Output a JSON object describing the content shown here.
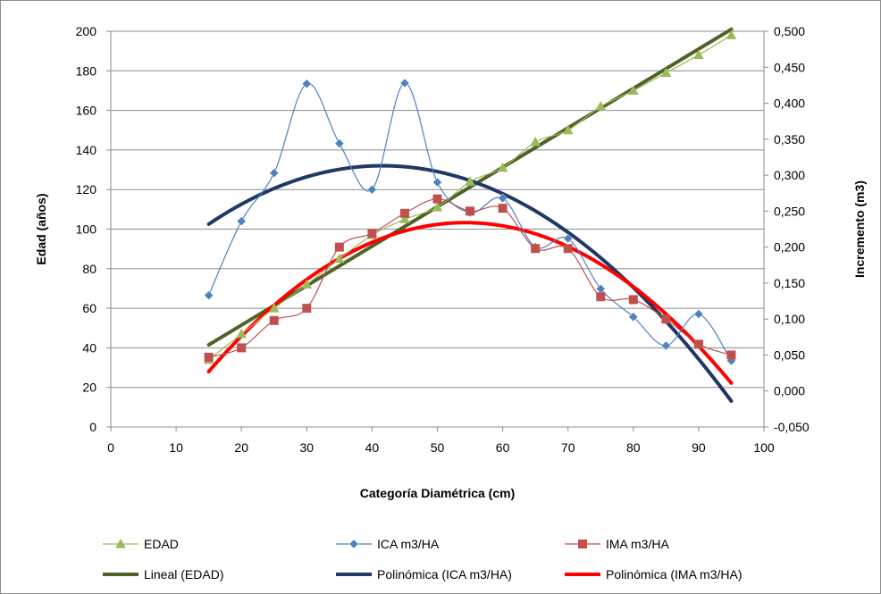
{
  "chart_data": {
    "type": "line",
    "xlabel": "Categoría Diamétrica (cm)",
    "ylabel": "Edad (años)",
    "y2label": "Incremento (m3)",
    "xlim": [
      0,
      100
    ],
    "ylim": [
      0,
      200
    ],
    "y2lim": [
      -0.05,
      0.5
    ],
    "x_ticks": [
      0,
      10,
      20,
      30,
      40,
      50,
      60,
      70,
      80,
      90,
      100
    ],
    "y_ticks": [
      0,
      20,
      40,
      60,
      80,
      100,
      120,
      140,
      160,
      180,
      200
    ],
    "y2_ticks": [
      "-0,050",
      "0,000",
      "0,050",
      "0,100",
      "0,150",
      "0,200",
      "0,250",
      "0,300",
      "0,350",
      "0,400",
      "0,450",
      "0,500"
    ],
    "y2_tick_values": [
      -0.05,
      0,
      0.05,
      0.1,
      0.15,
      0.2,
      0.25,
      0.3,
      0.35,
      0.4,
      0.45,
      0.5
    ],
    "grid": "horizontal",
    "legend_position": "bottom",
    "x": [
      15,
      20,
      25,
      30,
      35,
      40,
      45,
      50,
      55,
      60,
      65,
      70,
      75,
      80,
      85,
      90,
      95
    ],
    "series": [
      {
        "name": "EDAD",
        "axis": "left",
        "marker": "triangle",
        "color": "#9bbb59",
        "values": [
          34,
          47,
          60,
          72,
          85,
          97,
          105,
          111,
          124,
          131,
          144,
          150,
          162,
          170,
          179,
          188,
          198
        ]
      },
      {
        "name": "ICA m3/HA",
        "axis": "right",
        "marker": "diamond",
        "color": "#4f81bd",
        "values": [
          0.133,
          0.236,
          0.303,
          0.427,
          0.344,
          0.28,
          0.428,
          0.29,
          0.248,
          0.268,
          0.2,
          0.212,
          0.142,
          0.103,
          0.063,
          0.107,
          0.042
        ]
      },
      {
        "name": "IMA m3/HA",
        "axis": "right",
        "marker": "square",
        "color": "#c0504d",
        "values": [
          0.047,
          0.06,
          0.098,
          0.115,
          0.2,
          0.219,
          0.247,
          0.267,
          0.25,
          0.254,
          0.198,
          0.198,
          0.131,
          0.127,
          0.1,
          0.065,
          0.05
        ]
      }
    ],
    "trendlines": [
      {
        "name": "Lineal (EDAD)",
        "axis": "left",
        "kind": "linear",
        "color": "#4f6228",
        "x_range": [
          15,
          95
        ],
        "points": [
          [
            15,
            41.5
          ],
          [
            95,
            201
          ]
        ]
      },
      {
        "name": "Polinómica (ICA m3/HA)",
        "axis": "right",
        "kind": "polynomial",
        "color": "#1f3864",
        "x_range": [
          15,
          95
        ],
        "points": [
          [
            15,
            0.232
          ],
          [
            42.5,
            0.313
          ],
          [
            95,
            -0.014
          ]
        ]
      },
      {
        "name": "Polinómica (IMA m3/HA)",
        "axis": "right",
        "kind": "polynomial",
        "color": "#ff0000",
        "x_range": [
          15,
          95
        ],
        "points": [
          [
            15,
            0.027
          ],
          [
            54,
            0.234
          ],
          [
            95,
            0.011
          ]
        ]
      }
    ]
  },
  "legend": [
    {
      "label": "EDAD",
      "color": "#9bbb59",
      "marker": "triangle",
      "line": "series"
    },
    {
      "label": "ICA m3/HA",
      "color": "#4f81bd",
      "marker": "diamond",
      "line": "series"
    },
    {
      "label": "IMA m3/HA",
      "color": "#c0504d",
      "marker": "square",
      "line": "series"
    },
    {
      "label": "Lineal (EDAD)",
      "color": "#4f6228",
      "marker": "none",
      "line": "trend"
    },
    {
      "label": "Polinómica (ICA m3/HA)",
      "color": "#1f3864",
      "marker": "none",
      "line": "trend"
    },
    {
      "label": "Polinómica (IMA m3/HA)",
      "color": "#ff0000",
      "marker": "none",
      "line": "trend"
    }
  ]
}
